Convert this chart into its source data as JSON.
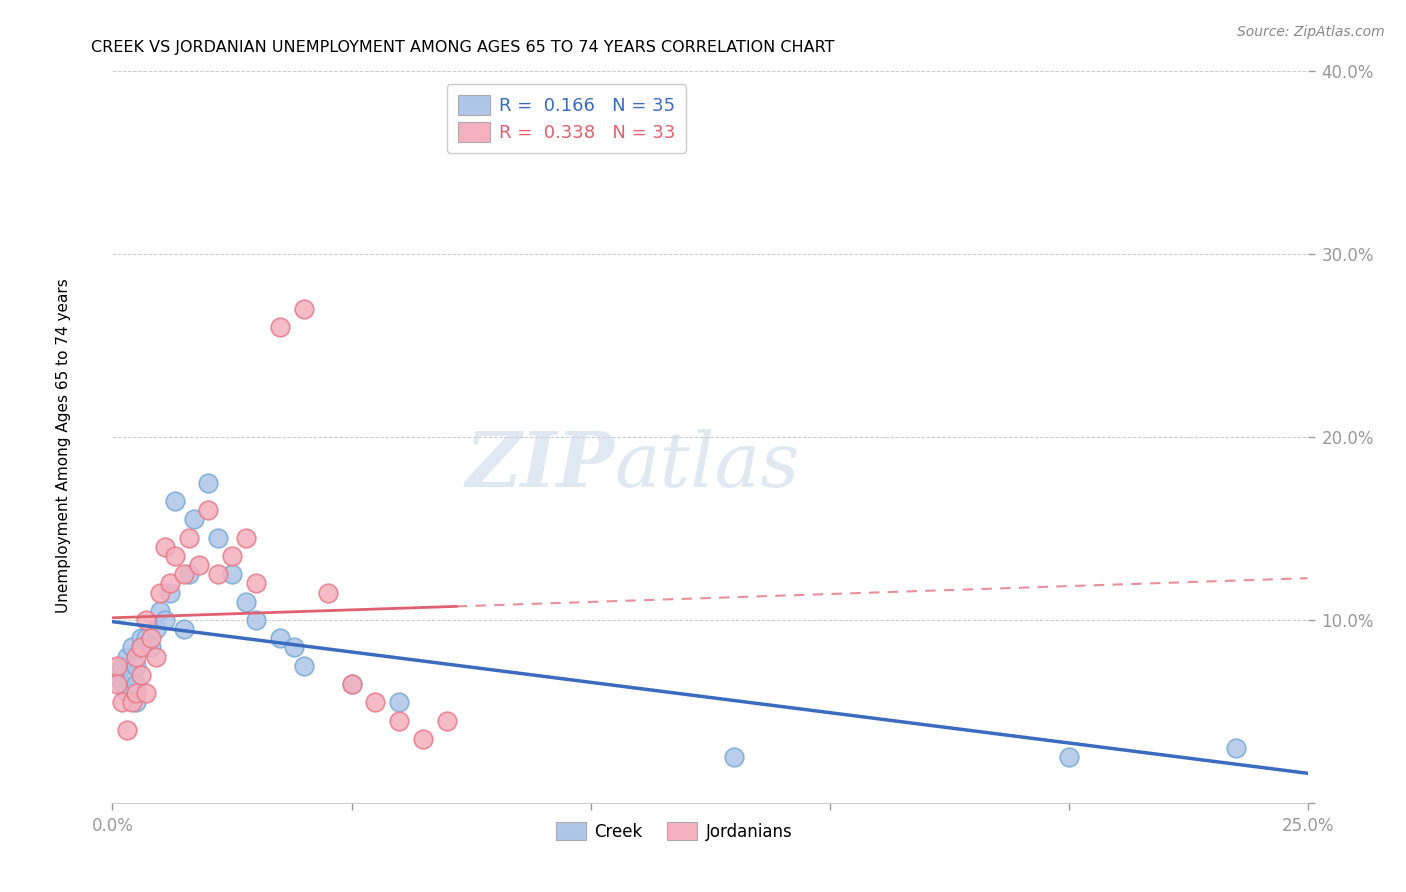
{
  "title": "CREEK VS JORDANIAN UNEMPLOYMENT AMONG AGES 65 TO 74 YEARS CORRELATION CHART",
  "source": "Source: ZipAtlas.com",
  "ylabel": "Unemployment Among Ages 65 to 74 years",
  "xlim": [
    0.0,
    0.25
  ],
  "ylim": [
    0.0,
    0.4
  ],
  "xticks": [
    0.0,
    0.05,
    0.1,
    0.15,
    0.2,
    0.25
  ],
  "yticks": [
    0.0,
    0.1,
    0.2,
    0.3,
    0.4
  ],
  "creek_color": "#aec6e8",
  "creek_edge_color": "#7aaad4",
  "jordan_color": "#f4b0be",
  "jordan_edge_color": "#e87a8a",
  "creek_line_color": "#3a6bbf",
  "jordan_line_color": "#e06070",
  "creek_R": 0.166,
  "creek_N": 35,
  "jordan_R": 0.338,
  "jordan_N": 33,
  "watermark_zip": "ZIP",
  "watermark_atlas": "atlas",
  "creek_x": [
    0.001,
    0.002,
    0.002,
    0.003,
    0.003,
    0.004,
    0.004,
    0.005,
    0.005,
    0.005,
    0.006,
    0.006,
    0.007,
    0.008,
    0.009,
    0.01,
    0.011,
    0.012,
    0.013,
    0.015,
    0.016,
    0.017,
    0.02,
    0.022,
    0.025,
    0.028,
    0.03,
    0.035,
    0.038,
    0.04,
    0.05,
    0.06,
    0.13,
    0.2,
    0.235
  ],
  "creek_y": [
    0.07,
    0.075,
    0.065,
    0.06,
    0.08,
    0.07,
    0.085,
    0.065,
    0.055,
    0.075,
    0.085,
    0.09,
    0.09,
    0.085,
    0.095,
    0.105,
    0.1,
    0.115,
    0.165,
    0.095,
    0.125,
    0.155,
    0.175,
    0.145,
    0.125,
    0.11,
    0.1,
    0.09,
    0.085,
    0.075,
    0.065,
    0.055,
    0.025,
    0.025,
    0.03
  ],
  "jordan_x": [
    0.001,
    0.001,
    0.002,
    0.003,
    0.004,
    0.005,
    0.005,
    0.006,
    0.006,
    0.007,
    0.007,
    0.008,
    0.009,
    0.01,
    0.011,
    0.012,
    0.013,
    0.015,
    0.016,
    0.018,
    0.02,
    0.022,
    0.025,
    0.028,
    0.03,
    0.035,
    0.04,
    0.045,
    0.05,
    0.055,
    0.06,
    0.065,
    0.07
  ],
  "jordan_y": [
    0.075,
    0.065,
    0.055,
    0.04,
    0.055,
    0.06,
    0.08,
    0.07,
    0.085,
    0.06,
    0.1,
    0.09,
    0.08,
    0.115,
    0.14,
    0.12,
    0.135,
    0.125,
    0.145,
    0.13,
    0.16,
    0.125,
    0.135,
    0.145,
    0.12,
    0.26,
    0.27,
    0.115,
    0.065,
    0.055,
    0.045,
    0.035,
    0.045
  ]
}
